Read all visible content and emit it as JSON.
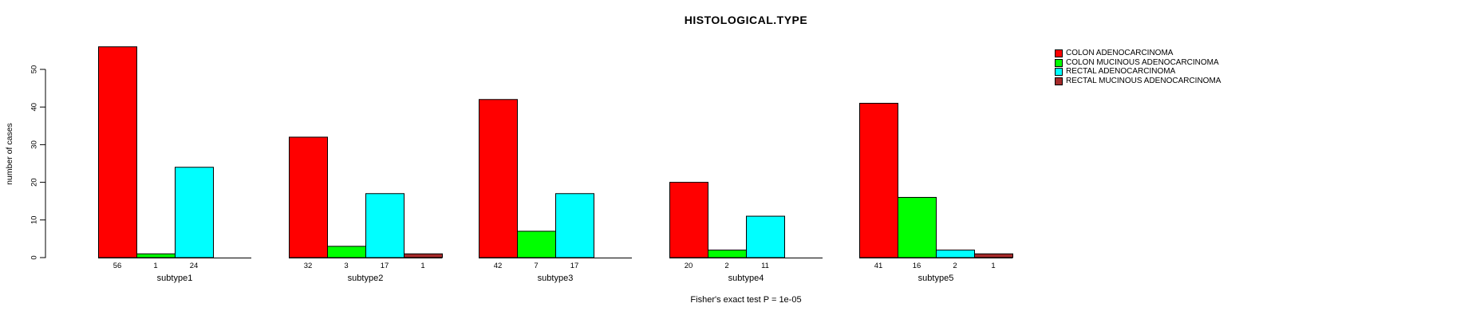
{
  "chart_data": {
    "type": "bar",
    "title": "HISTOLOGICAL.TYPE",
    "ylabel": "number of cases",
    "xlabel": "",
    "ylim": [
      0,
      50
    ],
    "yticks": [
      0,
      10,
      20,
      30,
      40,
      50
    ],
    "grid": false,
    "legend_position": "right",
    "bar_outline_color": "#000000",
    "series": [
      {
        "name": "COLON ADENOCARCINOMA",
        "color": "#FF0000"
      },
      {
        "name": "COLON MUCINOUS ADENOCARCINOMA",
        "color": "#00FF00"
      },
      {
        "name": "RECTAL ADENOCARCINOMA",
        "color": "#00FFFF"
      },
      {
        "name": "RECTAL MUCINOUS ADENOCARCINOMA",
        "color": "#A52A2A"
      }
    ],
    "categories": [
      "subtype1",
      "subtype2",
      "subtype3",
      "subtype4",
      "subtype5"
    ],
    "groups": [
      {
        "label": "subtype1",
        "values": [
          56,
          1,
          24,
          0
        ]
      },
      {
        "label": "subtype2",
        "values": [
          32,
          3,
          17,
          1
        ]
      },
      {
        "label": "subtype3",
        "values": [
          42,
          7,
          17,
          0
        ]
      },
      {
        "label": "subtype4",
        "values": [
          20,
          2,
          11,
          0
        ]
      },
      {
        "label": "subtype5",
        "values": [
          41,
          16,
          2,
          1
        ]
      }
    ],
    "annotation": "Fisher's exact test P = 1e-05"
  }
}
